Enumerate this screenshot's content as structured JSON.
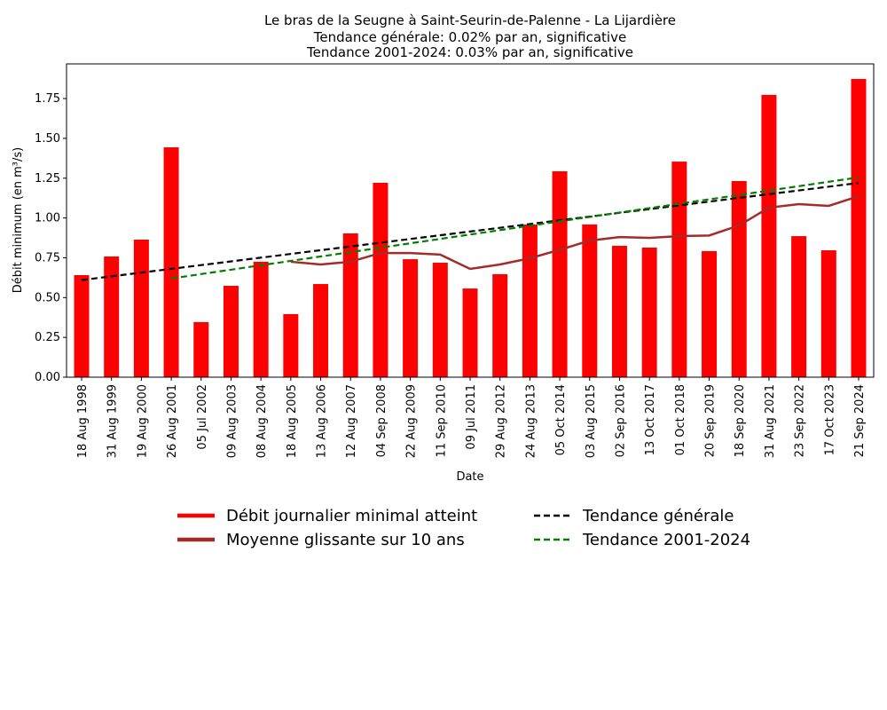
{
  "chart_data": {
    "type": "bar",
    "title": [
      "Le bras de la Seugne à Saint-Seurin-de-Palenne - La Lijardière",
      "Tendance générale: 0.02% par an, significative",
      "Tendance 2001-2024: 0.03% par an, significative"
    ],
    "xlabel": "Date",
    "ylabel": "Débit minimum (en m³/s)",
    "ylim": [
      0,
      1.96
    ],
    "yticks": [
      "0.00",
      "0.25",
      "0.50",
      "0.75",
      "1.00",
      "1.25",
      "1.50",
      "1.75"
    ],
    "categories": [
      "18 Aug 1998",
      "31 Aug 1999",
      "19 Aug 2000",
      "26 Aug 2001",
      "05 Jul 2002",
      "09 Aug 2003",
      "08 Aug 2004",
      "18 Aug 2005",
      "13 Aug 2006",
      "12 Aug 2007",
      "04 Sep 2008",
      "22 Aug 2009",
      "11 Sep 2010",
      "09 Jul 2011",
      "29 Aug 2012",
      "24 Aug 2013",
      "05 Oct 2014",
      "03 Aug 2015",
      "02 Sep 2016",
      "13 Oct 2017",
      "01 Oct 2018",
      "20 Sep 2019",
      "18 Sep 2020",
      "31 Aug 2021",
      "23 Sep 2022",
      "17 Oct 2023",
      "21 Sep 2024"
    ],
    "series": [
      {
        "name": "Débit journalier minimal atteint",
        "kind": "bar",
        "color": "#ff0000",
        "values": [
          0.641,
          0.758,
          0.864,
          1.444,
          0.346,
          0.574,
          0.725,
          0.396,
          0.585,
          0.903,
          1.221,
          0.741,
          0.719,
          0.557,
          0.647,
          0.959,
          1.293,
          0.959,
          0.825,
          0.814,
          1.354,
          0.792,
          1.232,
          1.773,
          0.886,
          0.797,
          1.873
        ]
      },
      {
        "name": "Moyenne glissante sur 10 ans",
        "kind": "line",
        "color": "#a52a2a",
        "values": [
          null,
          null,
          null,
          null,
          null,
          null,
          null,
          0.725,
          0.708,
          0.725,
          0.78,
          0.78,
          0.77,
          0.68,
          0.708,
          0.747,
          0.8,
          0.858,
          0.88,
          0.875,
          0.886,
          0.89,
          0.953,
          1.065,
          1.087,
          1.076,
          1.137
        ]
      },
      {
        "name": "Tendance générale",
        "kind": "dashed",
        "color": "#000000",
        "start_index": 0,
        "end_index": 26,
        "start_value": 0.61,
        "end_value": 1.22
      },
      {
        "name": "Tendance 2001-2024",
        "kind": "dashed",
        "color": "#008000",
        "start_index": 3,
        "end_index": 26,
        "start_value": 0.62,
        "end_value": 1.255
      }
    ],
    "legend_placement": "bottom-center"
  }
}
